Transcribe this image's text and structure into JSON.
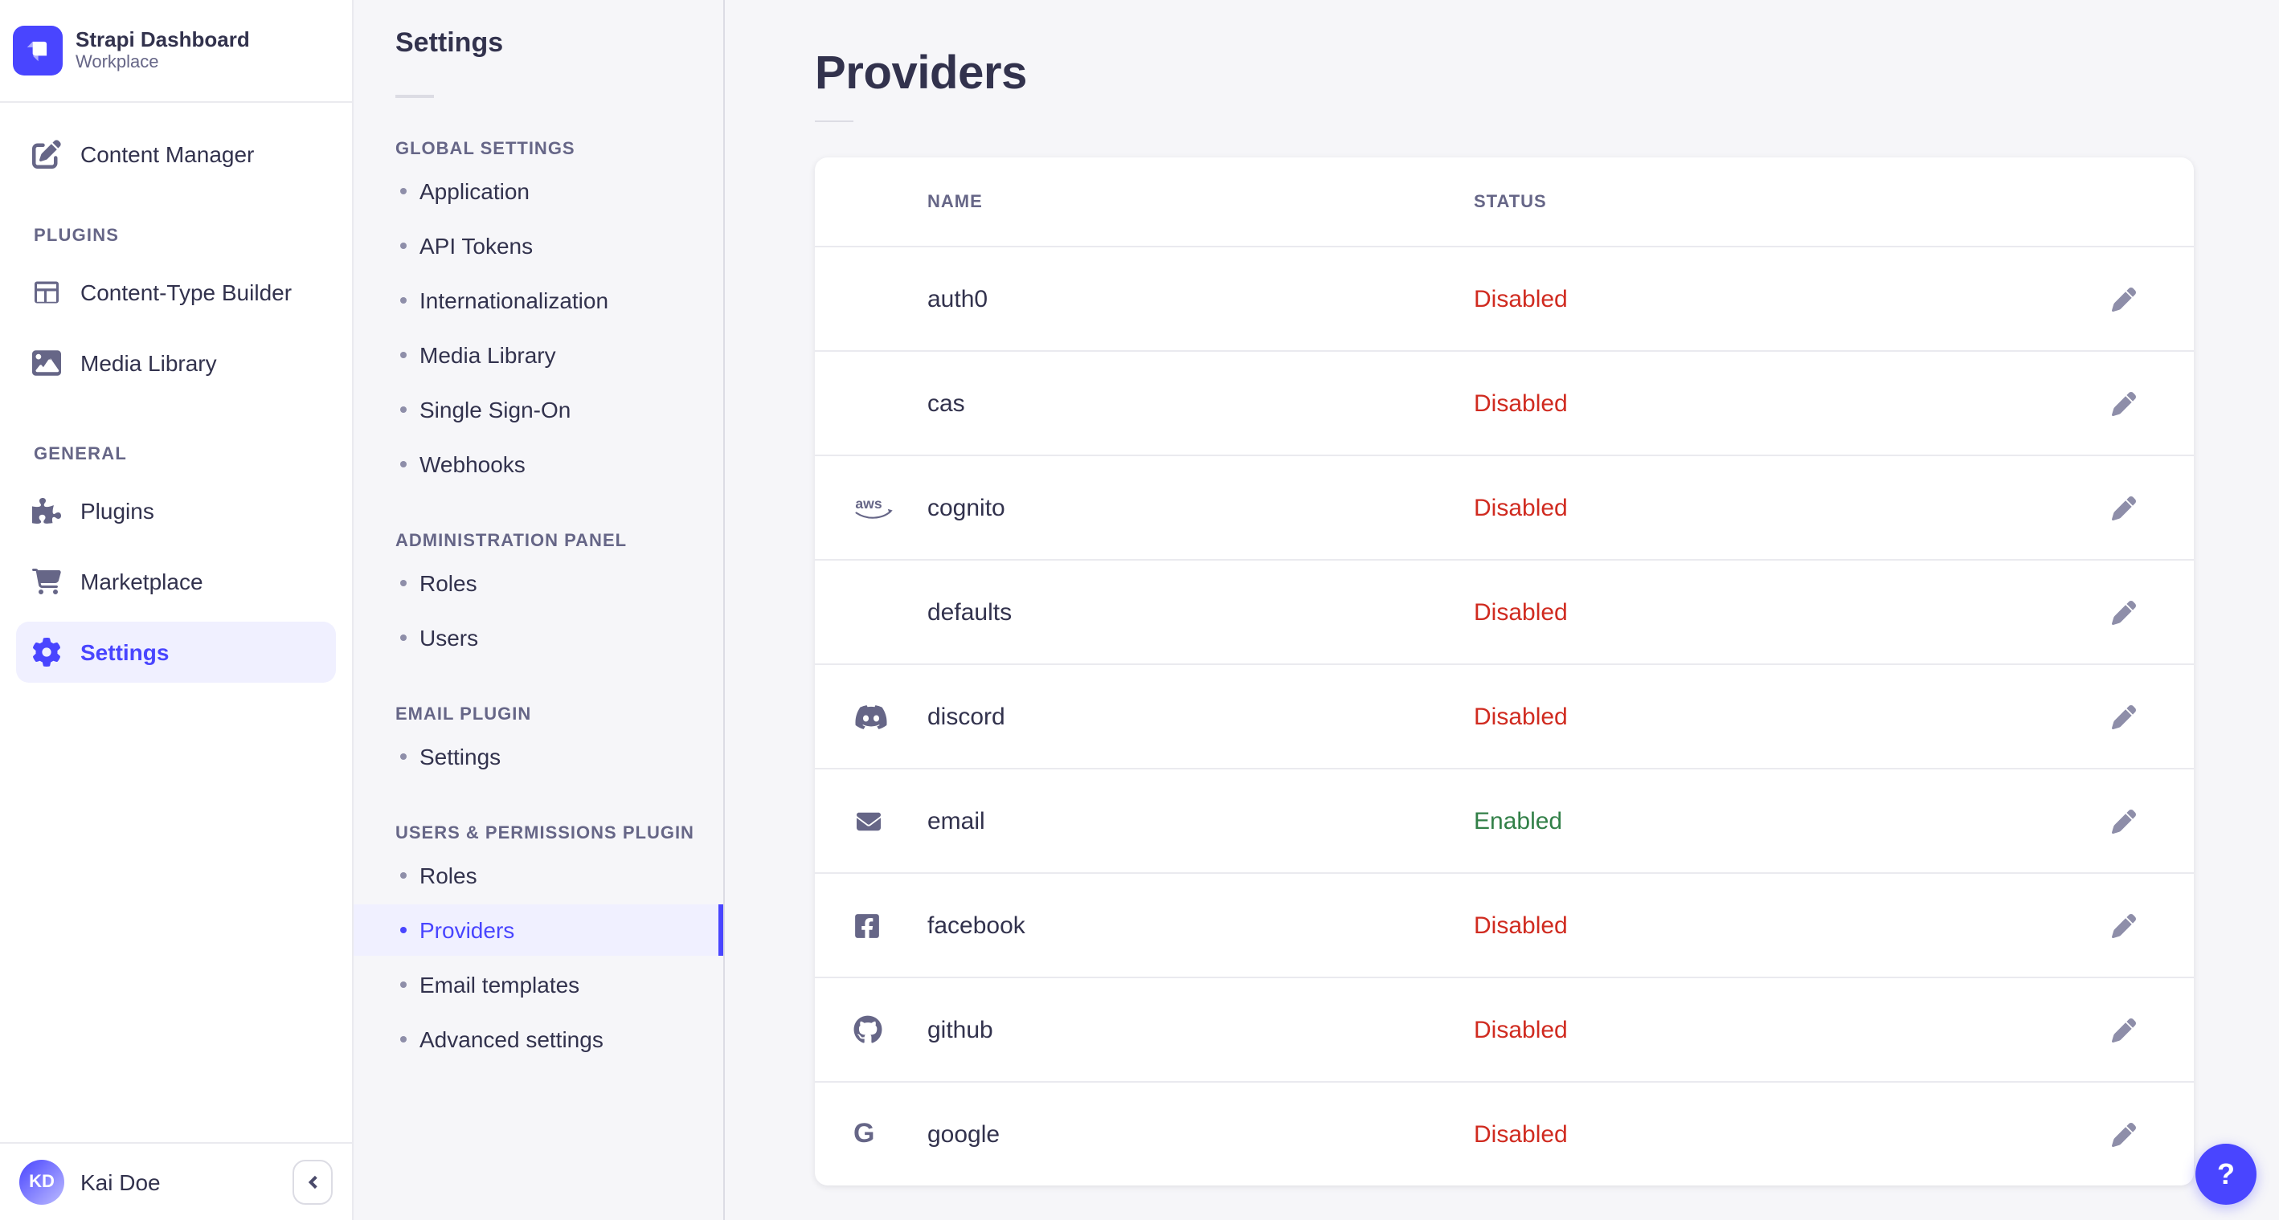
{
  "colors": {
    "accent": "#4945ff",
    "accent_bg": "#f0f0ff",
    "disabled": "#d02b20",
    "enabled": "#328048",
    "text": "#32324d",
    "muted": "#666687"
  },
  "brand": {
    "title": "Strapi Dashboard",
    "subtitle": "Workplace"
  },
  "sidebar": {
    "top_items": [
      {
        "label": "Content Manager",
        "icon": "pen-square",
        "active": false
      }
    ],
    "sections": [
      {
        "label": "PLUGINS",
        "items": [
          {
            "label": "Content-Type Builder",
            "icon": "layout",
            "active": false
          },
          {
            "label": "Media Library",
            "icon": "image",
            "active": false
          }
        ]
      },
      {
        "label": "GENERAL",
        "items": [
          {
            "label": "Plugins",
            "icon": "puzzle",
            "active": false
          },
          {
            "label": "Marketplace",
            "icon": "cart",
            "active": false
          },
          {
            "label": "Settings",
            "icon": "gear",
            "active": true
          }
        ]
      }
    ],
    "user": {
      "initials": "KD",
      "name": "Kai Doe"
    }
  },
  "subnav": {
    "title": "Settings",
    "sections": [
      {
        "label": "GLOBAL SETTINGS",
        "active_index": -1,
        "items": [
          "Application",
          "API Tokens",
          "Internationalization",
          "Media Library",
          "Single Sign-On",
          "Webhooks"
        ]
      },
      {
        "label": "ADMINISTRATION PANEL",
        "active_index": -1,
        "items": [
          "Roles",
          "Users"
        ]
      },
      {
        "label": "EMAIL PLUGIN",
        "active_index": -1,
        "items": [
          "Settings"
        ]
      },
      {
        "label": "USERS & PERMISSIONS PLUGIN",
        "active_index": 1,
        "items": [
          "Roles",
          "Providers",
          "Email templates",
          "Advanced settings"
        ]
      }
    ]
  },
  "main": {
    "title": "Providers",
    "table": {
      "columns": [
        "NAME",
        "STATUS"
      ],
      "rows": [
        {
          "name": "auth0",
          "icon": null,
          "status": "Disabled"
        },
        {
          "name": "cas",
          "icon": null,
          "status": "Disabled"
        },
        {
          "name": "cognito",
          "icon": "aws",
          "status": "Disabled"
        },
        {
          "name": "defaults",
          "icon": null,
          "status": "Disabled"
        },
        {
          "name": "discord",
          "icon": "discord",
          "status": "Disabled"
        },
        {
          "name": "email",
          "icon": "envelope",
          "status": "Enabled"
        },
        {
          "name": "facebook",
          "icon": "facebook",
          "status": "Disabled"
        },
        {
          "name": "github",
          "icon": "github",
          "status": "Disabled"
        },
        {
          "name": "google",
          "icon": "google",
          "status": "Disabled"
        }
      ]
    }
  },
  "help": {
    "label": "?"
  }
}
